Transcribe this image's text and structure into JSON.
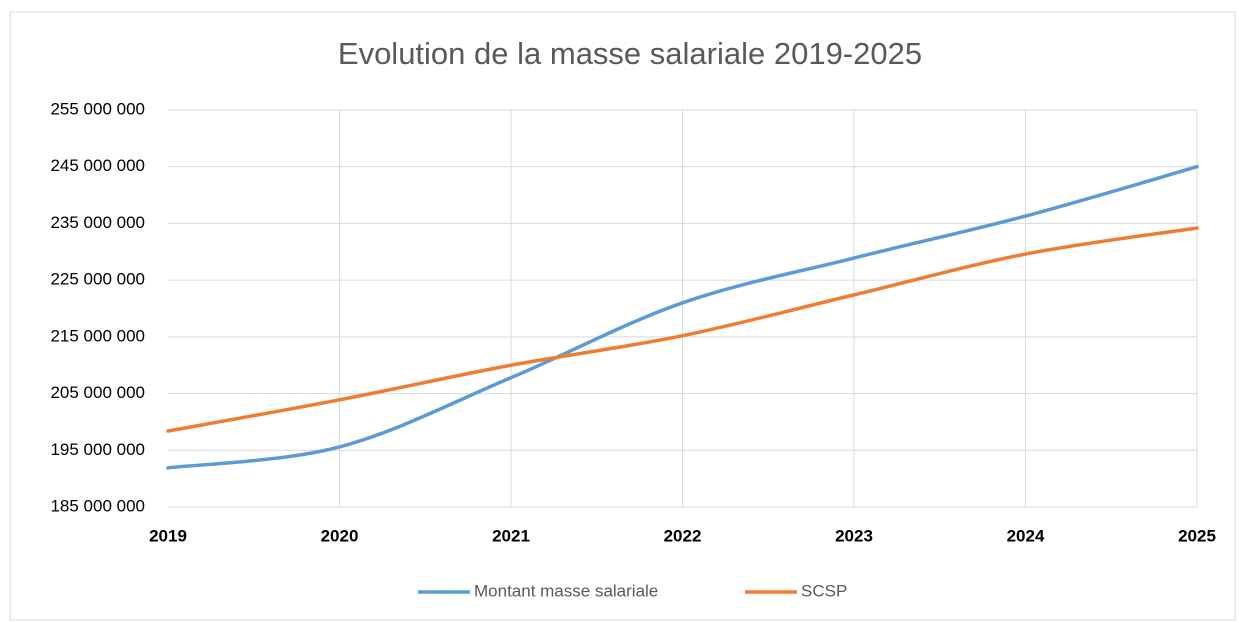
{
  "chart_data": {
    "type": "line",
    "title": "Evolution de la masse salariale 2019-2025",
    "categories": [
      "2019",
      "2020",
      "2021",
      "2022",
      "2023",
      "2024",
      "2025"
    ],
    "series": [
      {
        "name": "Montant masse salariale",
        "color": "#5b9bd5",
        "values": [
          191900000,
          195600000,
          207800000,
          221000000,
          228900000,
          236300000,
          245000000
        ]
      },
      {
        "name": "SCSP",
        "color": "#ed7d31",
        "values": [
          198400000,
          203900000,
          210000000,
          215200000,
          222400000,
          229600000,
          234200000
        ]
      }
    ],
    "ylim": [
      185000000,
      255000000
    ],
    "yticks": [
      {
        "value": 185000000,
        "label": "185 000 000"
      },
      {
        "value": 195000000,
        "label": "195 000 000"
      },
      {
        "value": 205000000,
        "label": "205 000 000"
      },
      {
        "value": 215000000,
        "label": "215 000 000"
      },
      {
        "value": 225000000,
        "label": "225 000 000"
      },
      {
        "value": 235000000,
        "label": "235 000 000"
      },
      {
        "value": 245000000,
        "label": "245 000 000"
      },
      {
        "value": 255000000,
        "label": "255 000 000"
      }
    ],
    "grid": true,
    "smooth": true,
    "legend": "bottom"
  }
}
